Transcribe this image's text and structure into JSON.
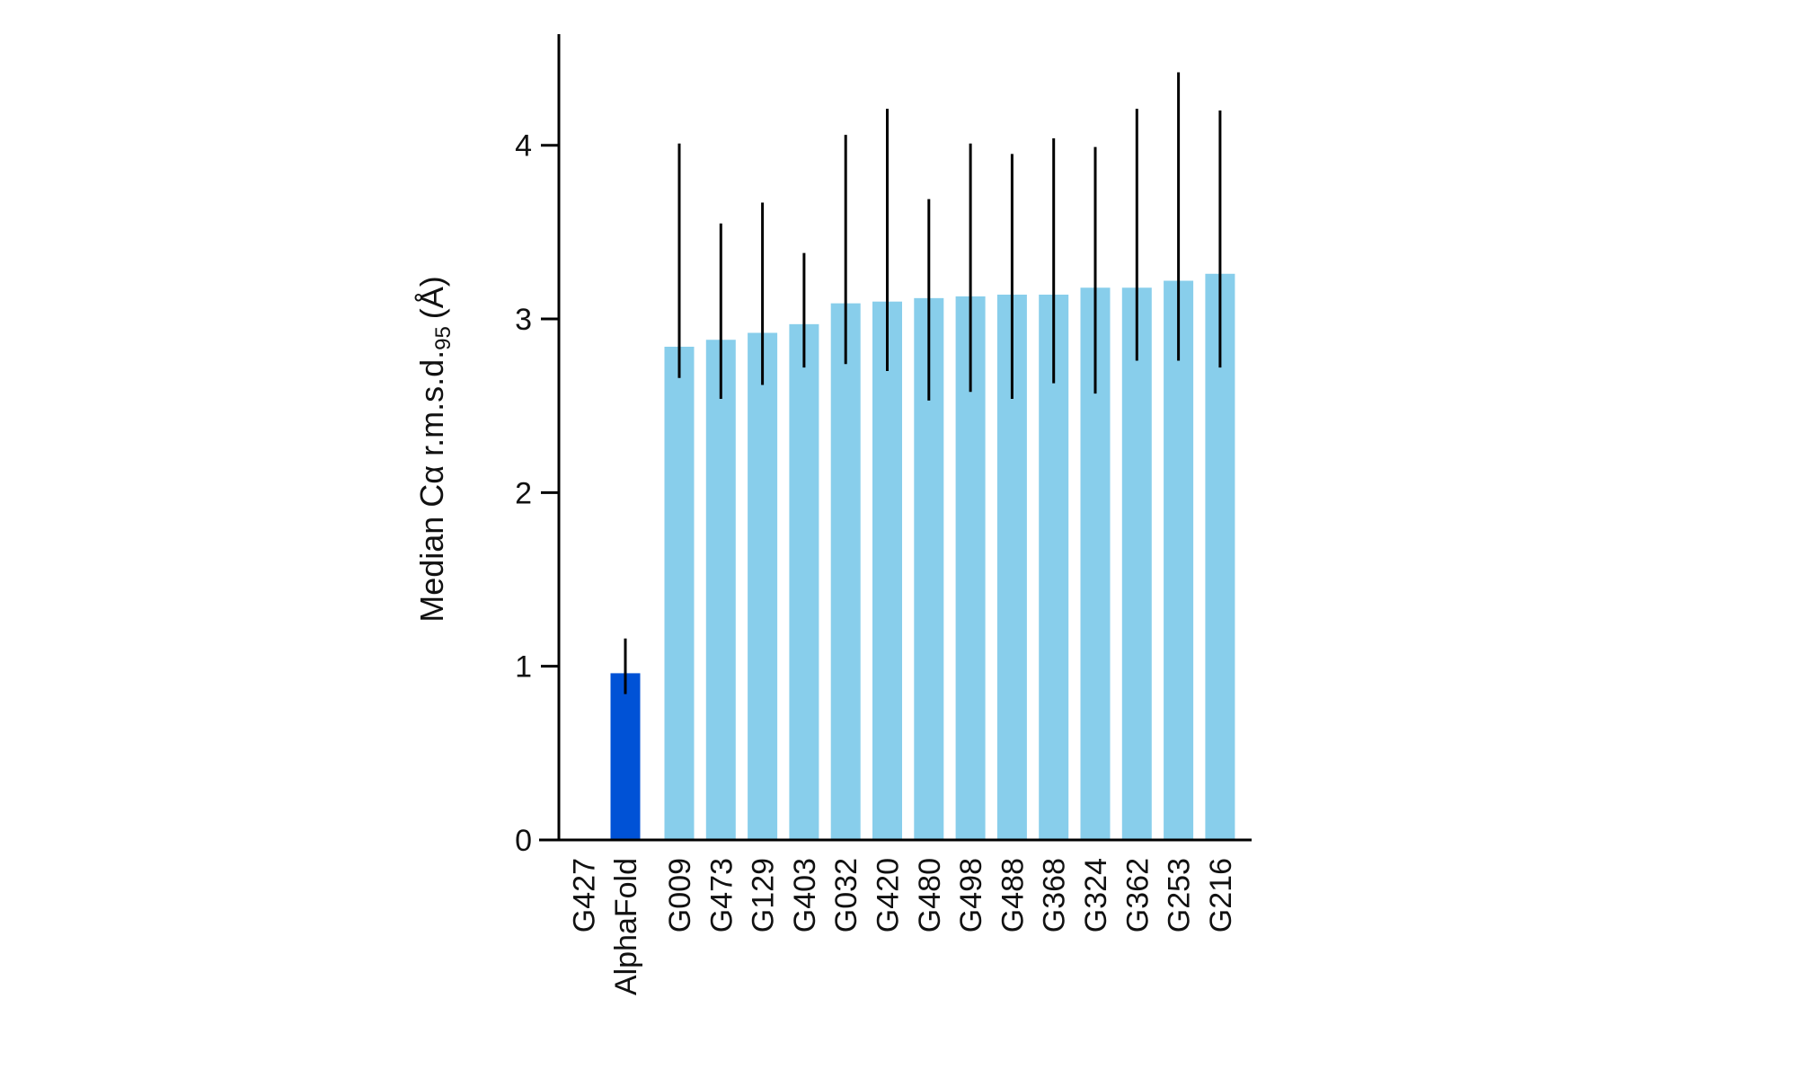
{
  "chart_data": {
    "type": "bar",
    "title": "",
    "xlabel": "",
    "ylabel": "Median Cα r.m.s.d.",
    "ylabel_subscript": "95",
    "ylabel_unit": "(Å)",
    "ylim": [
      0,
      4.64
    ],
    "yticks": [
      "0",
      "1",
      "2",
      "3",
      "4"
    ],
    "grid": false,
    "legend": "none",
    "categories": [
      "G427",
      "AlphaFold",
      "G009",
      "G473",
      "G129",
      "G403",
      "G032",
      "G420",
      "G480",
      "G498",
      "G488",
      "G368",
      "G324",
      "G362",
      "G253",
      "G216"
    ],
    "values": [
      null,
      0.96,
      2.84,
      2.88,
      2.92,
      2.97,
      3.09,
      3.1,
      3.12,
      3.13,
      3.14,
      3.14,
      3.18,
      3.18,
      3.22,
      3.26
    ],
    "error_low": [
      null,
      0.84,
      2.66,
      2.54,
      2.62,
      2.72,
      2.74,
      2.7,
      2.53,
      2.58,
      2.54,
      2.63,
      2.57,
      2.76,
      2.76,
      2.72
    ],
    "error_high": [
      null,
      1.16,
      4.01,
      3.55,
      3.67,
      3.38,
      4.06,
      4.21,
      3.69,
      4.01,
      3.95,
      4.04,
      3.99,
      4.21,
      4.42,
      4.2
    ],
    "colors": {
      "highlight": "#0052d6",
      "default": "#88ceeb",
      "error_bar": "#000000",
      "axis": "#000000"
    },
    "highlight_category": "AlphaFold"
  }
}
